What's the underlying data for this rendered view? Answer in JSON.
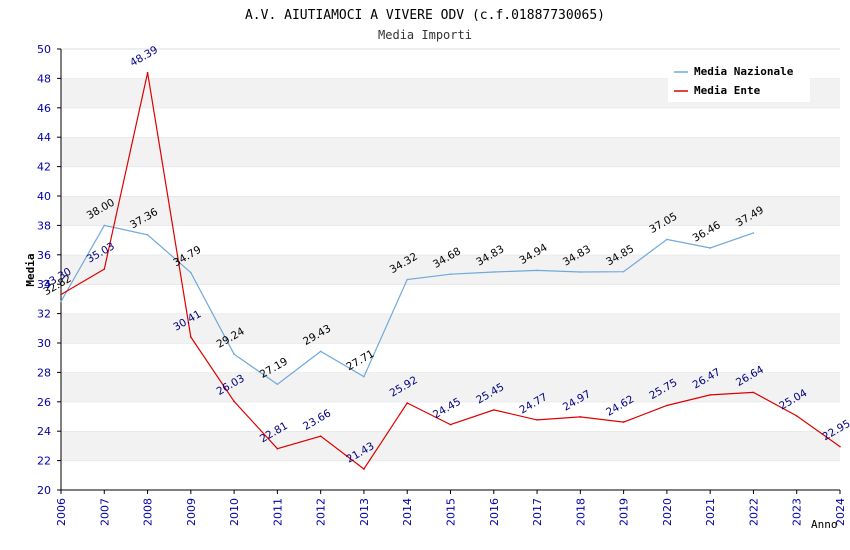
{
  "chart_data": {
    "type": "line",
    "title": "A.V. AIUTIAMOCI A VIVERE ODV (c.f.01887730065)",
    "subtitle": "Media Importi",
    "xlabel": "Anno",
    "ylabel": "Media",
    "ylim": [
      20,
      50
    ],
    "yticks": [
      "20",
      "22",
      "24",
      "26",
      "28",
      "30",
      "32",
      "34",
      "36",
      "38",
      "40",
      "42",
      "44",
      "46",
      "48",
      "50"
    ],
    "grid": "horizontal alternating bands",
    "legend_position": "top-right",
    "x": [
      "2006",
      "2007",
      "2008",
      "2009",
      "2010",
      "2011",
      "2012",
      "2013",
      "2014",
      "2015",
      "2016",
      "2017",
      "2018",
      "2019",
      "2020",
      "2021",
      "2022",
      "2023",
      "2024"
    ],
    "series": [
      {
        "name": "Media Nazionale",
        "color": "#6fa8dc",
        "label_color": "#000000",
        "values": [
          32.82,
          38.0,
          37.36,
          34.79,
          29.24,
          27.19,
          29.43,
          27.71,
          34.32,
          34.68,
          34.83,
          34.94,
          34.83,
          34.85,
          37.05,
          36.46,
          37.49,
          null,
          null
        ],
        "labels": [
          "32.82",
          "38.00",
          "37.36",
          "34.79",
          "29.24",
          "27.19",
          "29.43",
          "27.71",
          "34.32",
          "34.68",
          "34.83",
          "34.94",
          "34.83",
          "34.85",
          "37.05",
          "36.46",
          "37.49",
          "",
          ""
        ]
      },
      {
        "name": "Media Ente",
        "color": "#dd0000",
        "label_color": "#000080",
        "values": [
          33.3,
          35.03,
          48.39,
          30.41,
          26.03,
          22.81,
          23.66,
          21.43,
          25.92,
          24.45,
          25.45,
          24.77,
          24.97,
          24.62,
          25.75,
          26.47,
          26.64,
          25.04,
          22.95
        ],
        "labels": [
          "33.30",
          "35.03",
          "48.39",
          "30.41",
          "26.03",
          "22.81",
          "23.66",
          "21.43",
          "25.92",
          "24.45",
          "25.45",
          "24.77",
          "24.97",
          "24.62",
          "25.75",
          "26.47",
          "26.64",
          "25.04",
          "22.95"
        ]
      }
    ]
  }
}
